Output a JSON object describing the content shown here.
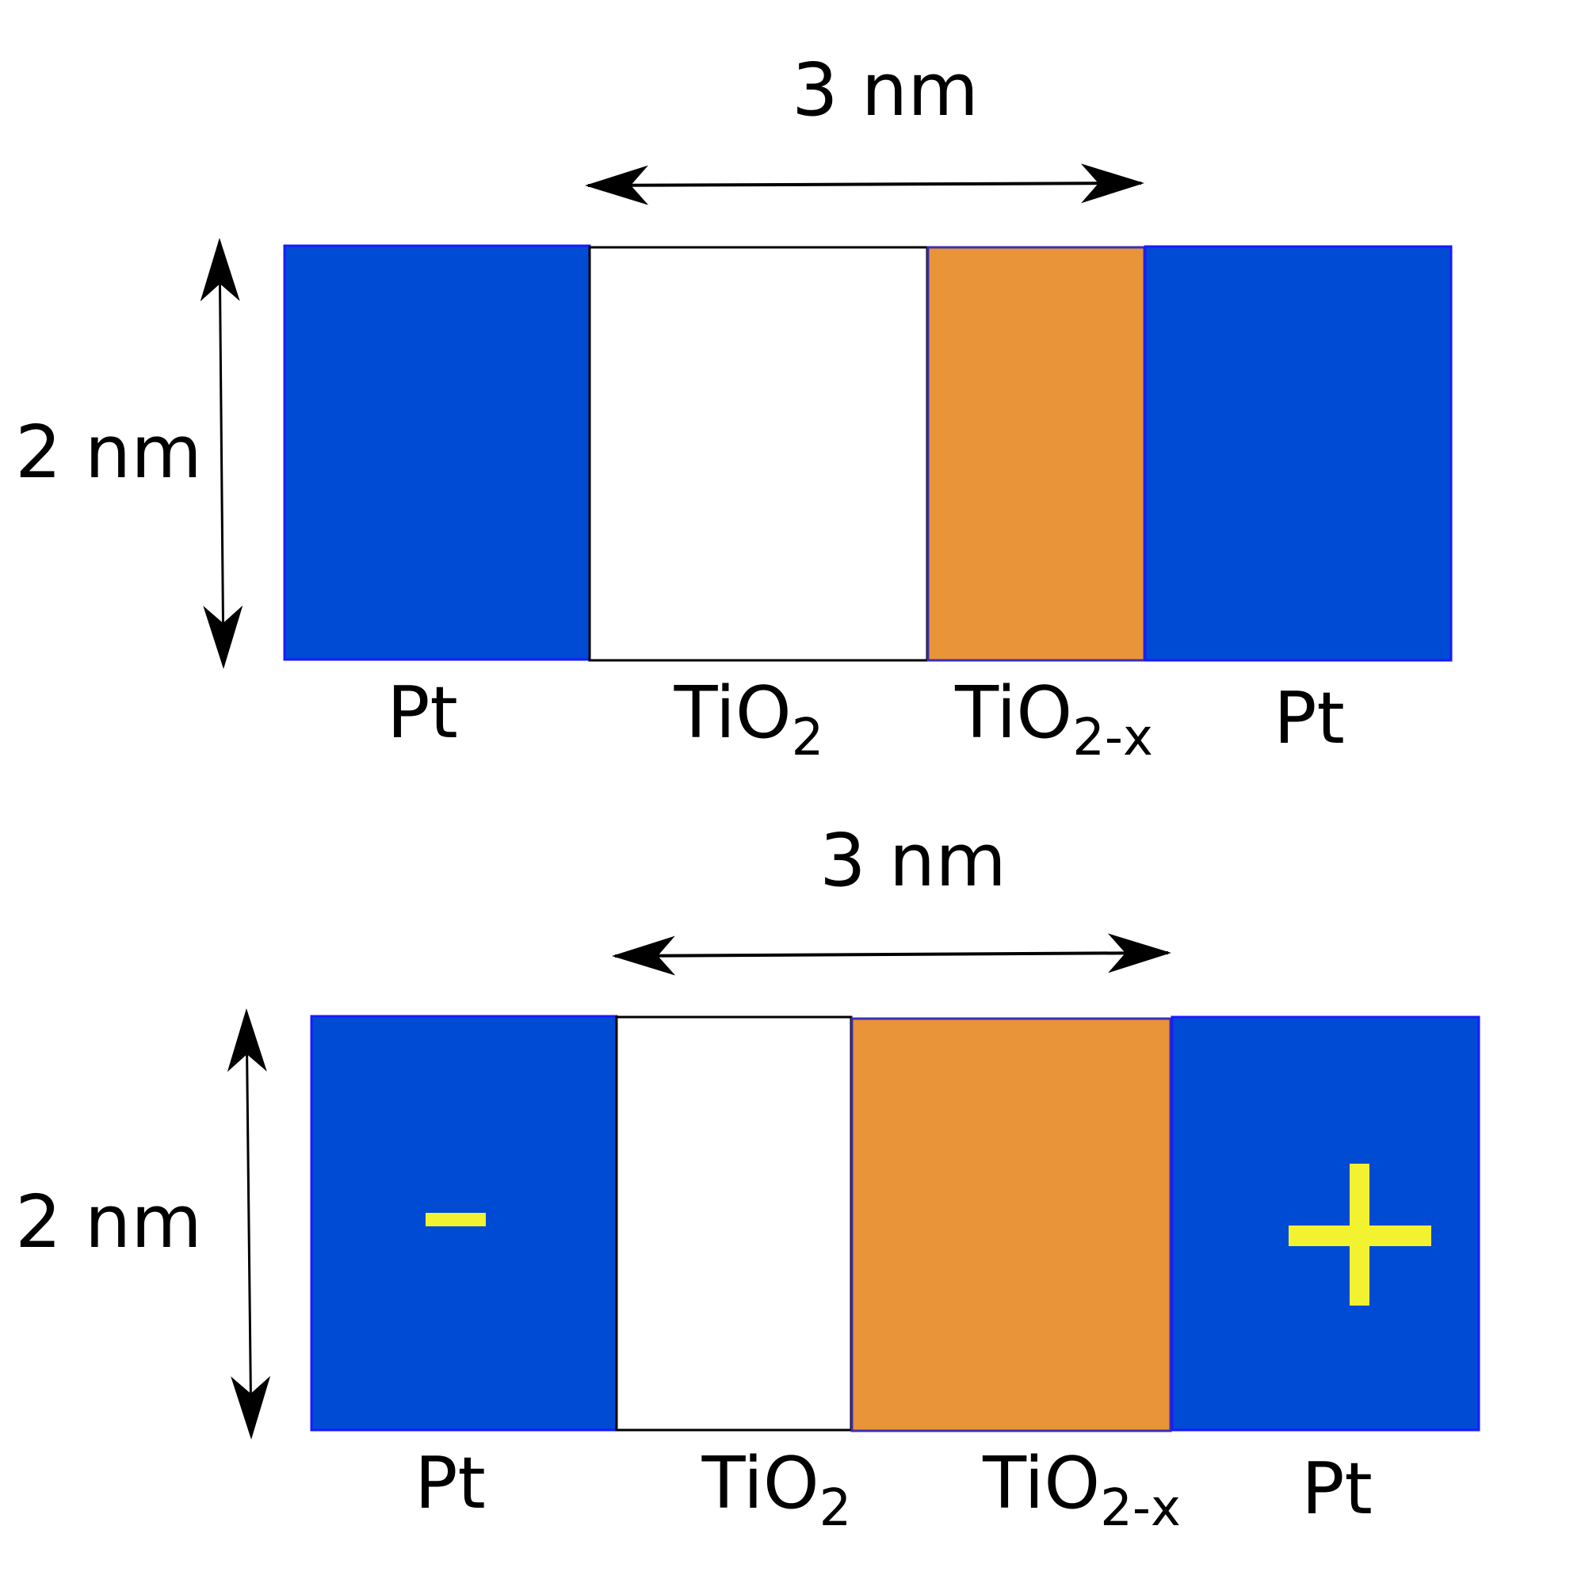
{
  "colors": {
    "pt_fill": "#004BD4",
    "pt_stroke": "#1a1aff",
    "tio2_fill": "#ffffff",
    "tio2x_fill": "#E99438",
    "sign": "#F2F230",
    "ink": "#000000"
  },
  "panels": [
    {
      "width_label": "3 nm",
      "height_label": "2 nm",
      "layers": [
        {
          "label": "Pt",
          "sub": ""
        },
        {
          "label": "TiO",
          "sub": "2"
        },
        {
          "label": "TiO",
          "sub": "2-x"
        },
        {
          "label": "Pt",
          "sub": ""
        }
      ],
      "left_sign": "",
      "right_sign": ""
    },
    {
      "width_label": "3 nm",
      "height_label": "2 nm",
      "layers": [
        {
          "label": "Pt",
          "sub": ""
        },
        {
          "label": "TiO",
          "sub": "2"
        },
        {
          "label": "TiO",
          "sub": "2-x"
        },
        {
          "label": "Pt",
          "sub": ""
        }
      ],
      "left_sign": "-",
      "right_sign": "+"
    }
  ]
}
